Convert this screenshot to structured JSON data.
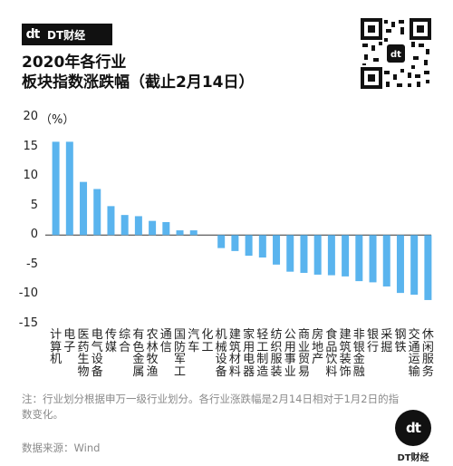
{
  "brand": {
    "name": "DT财经",
    "logo_mark": "dt"
  },
  "header": {
    "title_line1": "2020年各行业",
    "title_line2": "板块指数涨跌幅（截止2月14日）"
  },
  "qr_code": {
    "icon": "qr-code-icon"
  },
  "chart_data": {
    "type": "bar",
    "unit_label": "（%）",
    "ylim": [
      -15,
      20
    ],
    "yticks": [
      20,
      15,
      10,
      5,
      0,
      -5,
      -10,
      -15
    ],
    "bar_color": "#5ab4ee",
    "grid": false,
    "categories": [
      "计算机",
      "电子",
      "医药生物",
      "电气设备",
      "传媒",
      "综合",
      "有色金属",
      "农林牧渔",
      "通信",
      "国防军工",
      "汽车",
      "化工",
      "机械设备",
      "建筑材料",
      "家用电器",
      "轻工制造",
      "纺织服装",
      "公用事业",
      "商业贸易",
      "房地产",
      "食品饮料",
      "建筑装饰",
      "非银金融",
      "银行",
      "采掘",
      "钢铁",
      "交通运输",
      "休闲服务"
    ],
    "values": [
      15.8,
      15.8,
      9.0,
      7.8,
      4.9,
      3.4,
      3.2,
      2.4,
      2.2,
      0.8,
      0.8,
      0.0,
      -2.2,
      -2.7,
      -3.5,
      -3.8,
      -5.0,
      -6.2,
      -6.4,
      -6.7,
      -6.8,
      -7.0,
      -7.8,
      -8.0,
      -8.7,
      -9.8,
      -10.1,
      -11.0
    ]
  },
  "footer": {
    "note": "注：行业划分根据申万一级行业划分。各行业涨跌幅是2月14日相对于1月2日的指数变化。",
    "source": "数据来源：Wind"
  }
}
